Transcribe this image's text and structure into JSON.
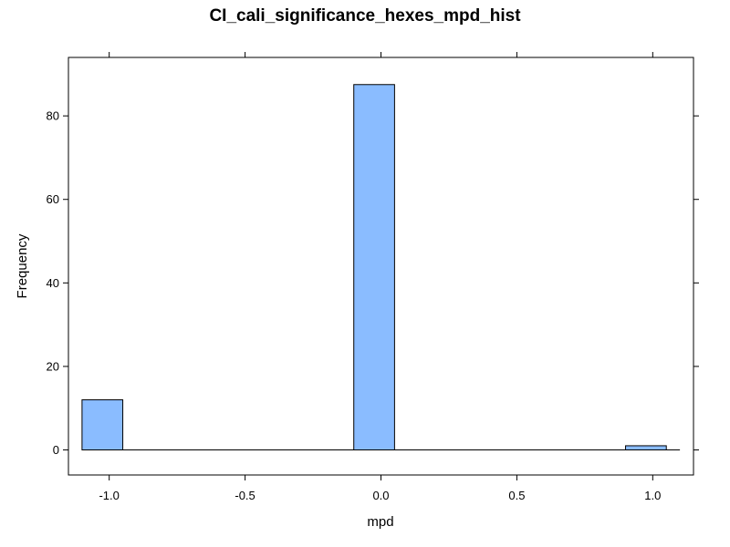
{
  "chart_data": {
    "type": "bar",
    "title": "CI_cali_significance_hexes_mpd_hist",
    "xlabel": "mpd",
    "ylabel": "Frequency",
    "xlim": [
      -1.15,
      1.15
    ],
    "ylim": [
      -6,
      94
    ],
    "x_ticks": [
      -1.0,
      -0.5,
      0.0,
      0.5,
      1.0
    ],
    "x_tick_labels": [
      "-1.0",
      "-0.5",
      "0.0",
      "0.5",
      "1.0"
    ],
    "y_ticks": [
      0,
      20,
      40,
      60,
      80
    ],
    "y_tick_labels": [
      "0",
      "20",
      "40",
      "60",
      "80"
    ],
    "bar_color": "#8abcff",
    "bins": [
      {
        "start": -1.1,
        "end": -0.95,
        "count": 12
      },
      {
        "start": -0.1,
        "end": 0.05,
        "count": 87.5
      },
      {
        "start": 0.9,
        "end": 1.05,
        "count": 1
      }
    ],
    "baseline_range": [
      -1.1,
      1.1
    ],
    "grid": false,
    "legend": "none"
  }
}
